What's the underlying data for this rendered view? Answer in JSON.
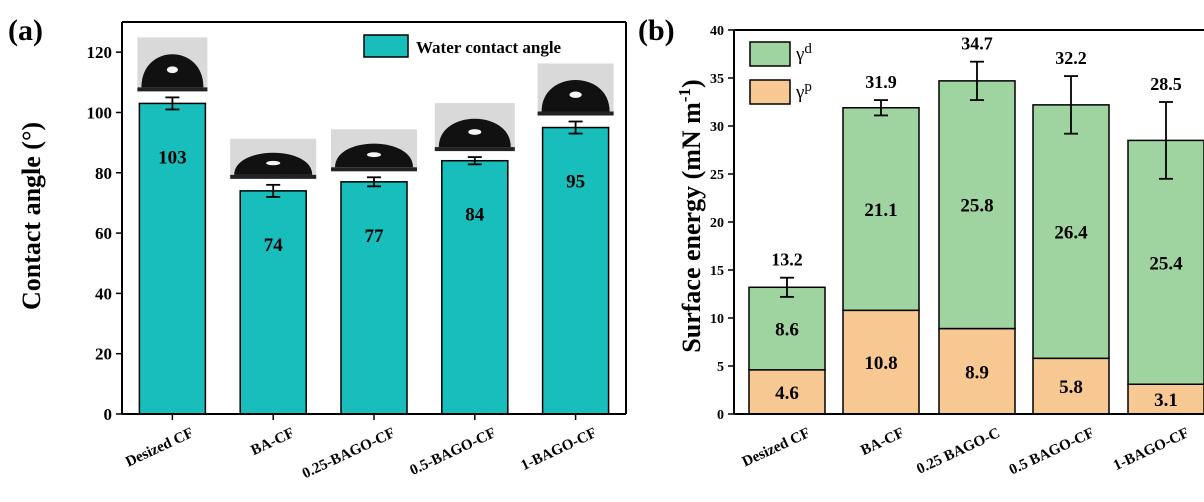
{
  "panels": {
    "a": {
      "label": "(a)",
      "ylabel": "Contact angle (°)",
      "legend": "Water contact angle",
      "bar_color": "#17bebb",
      "droplet_color": "#111111"
    },
    "b": {
      "label": "(b)",
      "ylabel": "Surface energy (mN m-1)",
      "legend_d": "γd",
      "legend_p": "γp",
      "color_d": "#9fd39f",
      "color_p": "#f8c892"
    }
  },
  "chart_data": [
    {
      "type": "bar",
      "categories": [
        "Desized CF",
        "BA-CF",
        "0.25-BAGO-CF",
        "0.5-BAGO-CF",
        "1-BAGO-CF"
      ],
      "series": [
        {
          "name": "Water contact angle",
          "values": [
            103,
            74,
            77,
            84,
            95
          ],
          "errors": [
            2,
            2,
            1.5,
            1.2,
            2
          ],
          "labels": [
            "103",
            "74",
            "77",
            "84",
            "95"
          ]
        }
      ],
      "ylabel": "Contact angle (°)",
      "ylim": [
        0,
        130
      ],
      "yticks": [
        "0",
        "20",
        "40",
        "60",
        "80",
        "100",
        "120"
      ],
      "grid": false,
      "legend": "top-right"
    },
    {
      "type": "bar",
      "stacked": true,
      "categories": [
        "Desized CF",
        "BA-CF",
        "0.25 BAGO-C",
        "0.5 BAGO-CF",
        "1-BAGO-CF"
      ],
      "series": [
        {
          "name": "γp",
          "values": [
            4.6,
            10.8,
            8.9,
            5.8,
            3.1
          ],
          "labels": [
            "4.6",
            "10.8",
            "8.9",
            "5.8",
            "3.1"
          ]
        },
        {
          "name": "γd",
          "values": [
            8.6,
            21.1,
            25.8,
            26.4,
            25.4
          ],
          "labels": [
            "8.6",
            "21.1",
            "25.8",
            "26.4",
            "25.4"
          ]
        }
      ],
      "totals": [
        13.2,
        31.9,
        34.7,
        32.2,
        28.5
      ],
      "total_labels": [
        "13.2",
        "31.9",
        "34.7",
        "32.2",
        "28.5"
      ],
      "errors": [
        1.0,
        0.8,
        2.0,
        3.0,
        4.0
      ],
      "ylabel": "Surface energy (mN m-1)",
      "ylim": [
        0,
        40
      ],
      "yticks": [
        "0",
        "5",
        "10",
        "15",
        "20",
        "25",
        "30",
        "35",
        "40"
      ],
      "grid": false,
      "legend": "top-left"
    }
  ]
}
